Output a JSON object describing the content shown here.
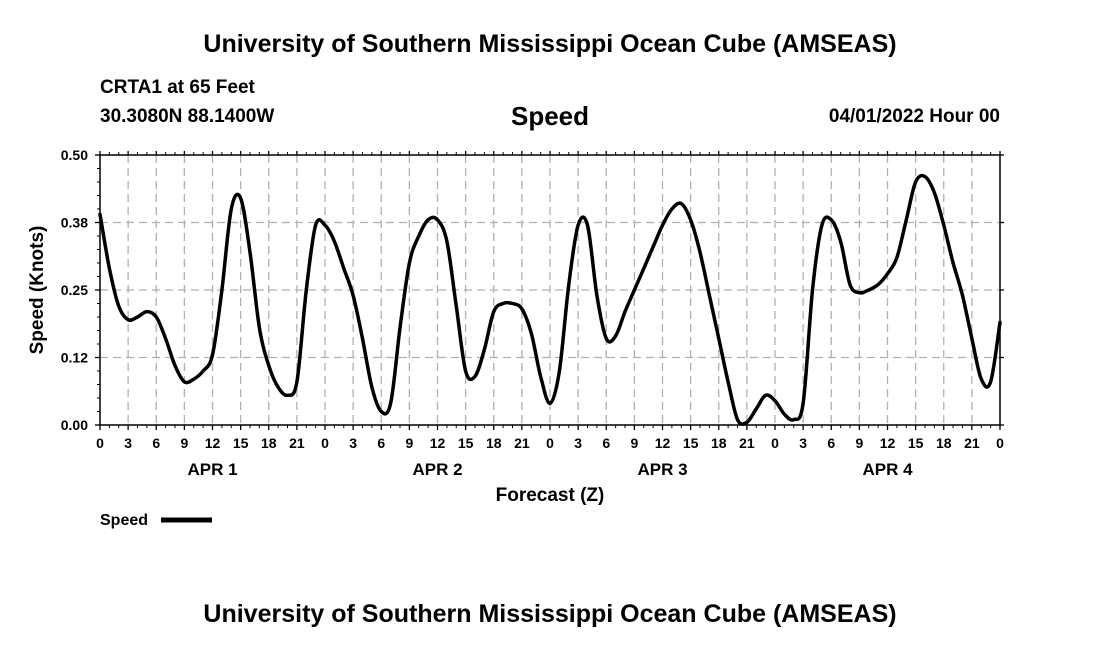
{
  "header": {
    "title": "University of Southern Mississippi Ocean Cube (AMSEAS)",
    "station": "CRTA1 at 65 Feet",
    "coords": "30.3080N  88.1400W",
    "variable": "Speed",
    "datetime": "04/01/2022 Hour 00"
  },
  "footer": {
    "title": "University of Southern Mississippi Ocean Cube (AMSEAS)"
  },
  "chart_data": {
    "type": "line",
    "title": "Speed",
    "xlabel": "Forecast (Z)",
    "ylabel": "Speed (Knots)",
    "ylim": [
      0,
      0.5
    ],
    "xlim": [
      0,
      96
    ],
    "grid": true,
    "y_ticks": [
      0,
      0.125,
      0.25,
      0.375,
      0.5
    ],
    "y_tick_labels": [
      "0.00",
      "0.12",
      "0.25",
      "0.38",
      "0.50"
    ],
    "x_ticks": [
      0,
      3,
      6,
      9,
      12,
      15,
      18,
      21,
      24,
      27,
      30,
      33,
      36,
      39,
      42,
      45,
      48,
      51,
      54,
      57,
      60,
      63,
      66,
      69,
      72,
      75,
      78,
      81,
      84,
      87,
      90,
      93,
      96
    ],
    "x_tick_labels": [
      "0",
      "3",
      "6",
      "9",
      "12",
      "15",
      "18",
      "21",
      "0",
      "3",
      "6",
      "9",
      "12",
      "15",
      "18",
      "21",
      "0",
      "3",
      "6",
      "9",
      "12",
      "15",
      "18",
      "21",
      "0",
      "3",
      "6",
      "9",
      "12",
      "15",
      "18",
      "21",
      "0"
    ],
    "day_labels": [
      {
        "hour": 12,
        "label": "APR 1"
      },
      {
        "hour": 36,
        "label": "APR 2"
      },
      {
        "hour": 60,
        "label": "APR 3"
      },
      {
        "hour": 84,
        "label": "APR 4"
      }
    ],
    "legend": {
      "label": "Speed",
      "position": "bottom-left"
    },
    "series": [
      {
        "name": "Speed",
        "color": "#000000",
        "x": [
          0,
          1,
          2,
          3,
          4,
          5,
          6,
          7,
          8,
          9,
          10,
          11,
          12,
          13,
          14,
          15,
          16,
          17,
          18,
          19,
          20,
          21,
          22,
          23,
          24,
          25,
          26,
          27,
          28,
          29,
          30,
          31,
          32,
          33,
          34,
          35,
          36,
          37,
          38,
          39,
          40,
          41,
          42,
          43,
          44,
          45,
          46,
          47,
          48,
          49,
          50,
          51,
          52,
          53,
          54,
          55,
          56,
          57,
          58,
          59,
          60,
          61,
          62,
          63,
          64,
          65,
          66,
          67,
          68,
          69,
          70,
          71,
          72,
          73,
          74,
          75,
          76,
          77,
          78,
          79,
          80,
          81,
          82,
          83,
          84,
          85,
          86,
          87,
          88,
          89,
          90,
          91,
          92,
          93,
          94,
          95,
          96
        ],
        "values": [
          0.39,
          0.29,
          0.22,
          0.195,
          0.2,
          0.21,
          0.2,
          0.16,
          0.11,
          0.08,
          0.085,
          0.1,
          0.13,
          0.25,
          0.4,
          0.42,
          0.32,
          0.18,
          0.11,
          0.07,
          0.055,
          0.08,
          0.25,
          0.37,
          0.37,
          0.34,
          0.29,
          0.24,
          0.16,
          0.07,
          0.025,
          0.04,
          0.18,
          0.3,
          0.35,
          0.38,
          0.38,
          0.34,
          0.22,
          0.1,
          0.09,
          0.14,
          0.21,
          0.225,
          0.225,
          0.215,
          0.17,
          0.09,
          0.04,
          0.1,
          0.26,
          0.37,
          0.37,
          0.24,
          0.16,
          0.165,
          0.21,
          0.25,
          0.29,
          0.33,
          0.37,
          0.4,
          0.41,
          0.38,
          0.32,
          0.24,
          0.16,
          0.08,
          0.01,
          0.005,
          0.03,
          0.055,
          0.045,
          0.02,
          0.01,
          0.04,
          0.25,
          0.37,
          0.38,
          0.34,
          0.26,
          0.245,
          0.25,
          0.26,
          0.28,
          0.31,
          0.38,
          0.45,
          0.46,
          0.43,
          0.37,
          0.3,
          0.24,
          0.16,
          0.085,
          0.08,
          0.19
        ]
      }
    ]
  }
}
